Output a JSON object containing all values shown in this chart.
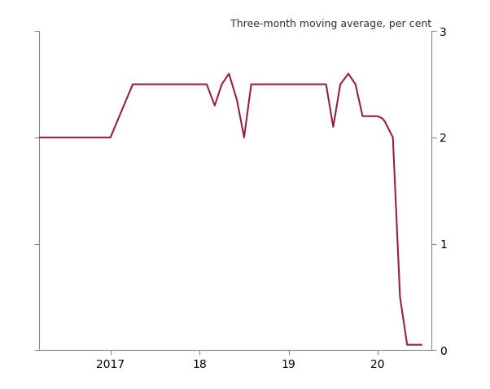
{
  "title": "Three-month moving average, per cent",
  "line_color": "#9b1c47",
  "background_color": "#ffffff",
  "ylim": [
    0,
    3
  ],
  "yticks": [
    0,
    1,
    2,
    3
  ],
  "xlim": [
    2016.2,
    2020.6
  ],
  "xticks": [
    2017.0,
    2018.0,
    2019.0,
    2020.0
  ],
  "xticklabels": [
    "2017",
    "18",
    "19",
    "20"
  ],
  "x": [
    2016.2,
    2016.5,
    2016.83,
    2017.0,
    2017.25,
    2017.33,
    2017.5,
    2017.58,
    2017.67,
    2017.75,
    2017.83,
    2017.92,
    2018.0,
    2018.08,
    2018.17,
    2018.25,
    2018.33,
    2018.42,
    2018.5,
    2018.58,
    2018.67,
    2018.75,
    2018.83,
    2018.92,
    2019.0,
    2019.08,
    2019.17,
    2019.25,
    2019.33,
    2019.42,
    2019.5,
    2019.58,
    2019.67,
    2019.75,
    2019.83,
    2019.92,
    2020.0,
    2020.05,
    2020.08,
    2020.17,
    2020.25,
    2020.33,
    2020.42,
    2020.5
  ],
  "y": [
    2.0,
    2.0,
    2.0,
    2.0,
    2.5,
    2.5,
    2.5,
    2.5,
    2.5,
    2.5,
    2.5,
    2.5,
    2.5,
    2.5,
    2.3,
    2.5,
    2.6,
    2.35,
    2.0,
    2.5,
    2.5,
    2.5,
    2.5,
    2.5,
    2.5,
    2.5,
    2.5,
    2.5,
    2.5,
    2.5,
    2.1,
    2.5,
    2.6,
    2.5,
    2.2,
    2.2,
    2.2,
    2.18,
    2.15,
    2.0,
    0.5,
    0.05,
    0.05,
    0.05
  ],
  "spine_color": "#888888",
  "tick_color": "#888888",
  "title_fontsize": 9,
  "tick_fontsize": 10
}
